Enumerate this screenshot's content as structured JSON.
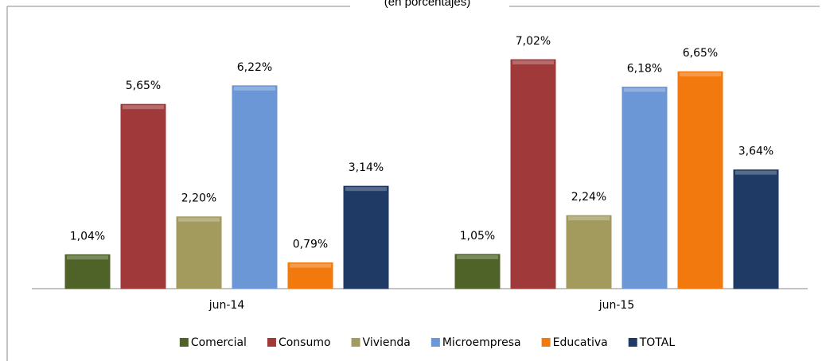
{
  "chart_data": {
    "type": "bar",
    "subtitle": "(en porcentajes)",
    "categories": [
      "jun-14",
      "jun-15"
    ],
    "series": [
      {
        "name": "Comercial",
        "color": "#4f6228",
        "values": [
          1.04,
          1.05
        ],
        "value_labels": [
          "1,04%",
          "1,05%"
        ]
      },
      {
        "name": "Consumo",
        "color": "#a0393a",
        "values": [
          5.65,
          7.02
        ],
        "value_labels": [
          "5,65%",
          "7,02%"
        ]
      },
      {
        "name": "Vivienda",
        "color": "#a39a5d",
        "values": [
          2.2,
          2.24
        ],
        "value_labels": [
          "2,20%",
          "2,24%"
        ]
      },
      {
        "name": "Microempresa",
        "color": "#6b97d6",
        "values": [
          6.22,
          6.18
        ],
        "value_labels": [
          "6,22%",
          "6,18%"
        ]
      },
      {
        "name": "Educativa",
        "color": "#f2790e",
        "values": [
          0.79,
          6.65
        ],
        "value_labels": [
          "0,79%",
          "6,65%"
        ]
      },
      {
        "name": "TOTAL",
        "color": "#1f3a64",
        "values": [
          3.14,
          3.64
        ],
        "value_labels": [
          "3,14%",
          "3,64%"
        ]
      }
    ],
    "legend": "bottom"
  }
}
